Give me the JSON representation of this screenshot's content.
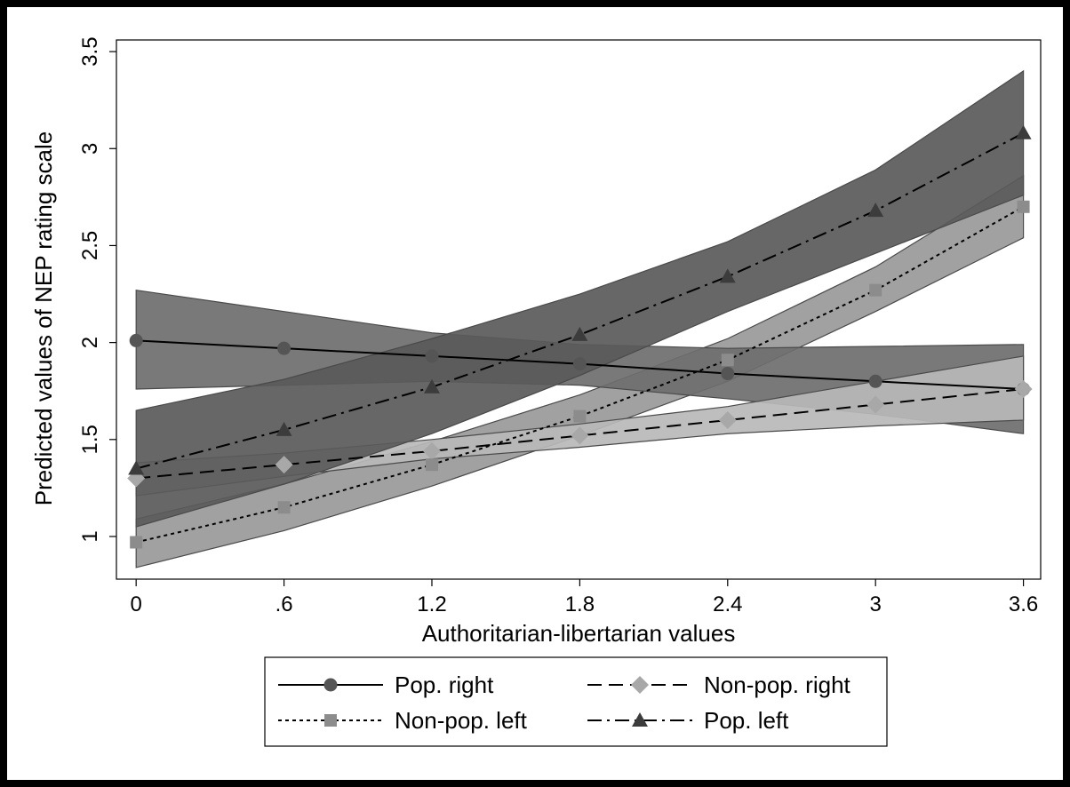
{
  "chart_data": {
    "type": "line",
    "title": "",
    "xlabel": "Authoritarian-libertarian values",
    "ylabel": "Predicted values of NEP rating scale",
    "x": [
      0,
      0.6,
      1.2,
      1.8,
      2.4,
      3,
      3.6
    ],
    "x_tick_labels": [
      "0",
      ".6",
      "1.2",
      "1.8",
      "2.4",
      "3",
      "3.6"
    ],
    "y_ticks": [
      1,
      1.5,
      2,
      2.5,
      3,
      3.5
    ],
    "y_tick_labels": [
      "1",
      "1.5",
      "2",
      "2.5",
      "3",
      "3.5"
    ],
    "xlim": [
      -0.08,
      3.67
    ],
    "ylim": [
      0.78,
      3.56
    ],
    "grid": false,
    "legend_position": "bottom",
    "series": [
      {
        "name": "Pop. right",
        "marker": "circle",
        "line_style": "solid",
        "line_color": "#000000",
        "marker_color": "#555555",
        "band_color": "#6e6e6e",
        "values": [
          2.01,
          1.97,
          1.93,
          1.89,
          1.84,
          1.8,
          1.76
        ],
        "ci_low": [
          1.76,
          1.78,
          1.8,
          1.78,
          1.71,
          1.63,
          1.53
        ],
        "ci_high": [
          2.27,
          2.16,
          2.05,
          1.99,
          1.97,
          1.98,
          1.99
        ]
      },
      {
        "name": "Non-pop. right",
        "marker": "diamond",
        "line_style": "dash",
        "line_color": "#000000",
        "marker_color": "#a8a8a8",
        "band_color": "#b8b8b8",
        "values": [
          1.3,
          1.37,
          1.44,
          1.52,
          1.6,
          1.68,
          1.76
        ],
        "ci_low": [
          1.21,
          1.31,
          1.4,
          1.46,
          1.53,
          1.57,
          1.6
        ],
        "ci_high": [
          1.38,
          1.43,
          1.5,
          1.58,
          1.67,
          1.8,
          1.93
        ]
      },
      {
        "name": "Non-pop. left",
        "marker": "square",
        "line_style": "dot",
        "line_color": "#000000",
        "marker_color": "#8c8c8c",
        "band_color": "#999999",
        "values": [
          0.97,
          1.15,
          1.37,
          1.62,
          1.91,
          2.27,
          2.7
        ],
        "ci_low": [
          0.84,
          1.03,
          1.26,
          1.52,
          1.8,
          2.16,
          2.54
        ],
        "ci_high": [
          1.09,
          1.27,
          1.49,
          1.73,
          2.02,
          2.39,
          2.86
        ]
      },
      {
        "name": "Pop. left",
        "marker": "triangle",
        "line_style": "dashdot",
        "line_color": "#000000",
        "marker_color": "#3c3c3c",
        "band_color": "#5a5a5a",
        "values": [
          1.35,
          1.55,
          1.77,
          2.04,
          2.34,
          2.68,
          3.08
        ],
        "ci_low": [
          1.05,
          1.27,
          1.53,
          1.83,
          2.16,
          2.46,
          2.76
        ],
        "ci_high": [
          1.65,
          1.81,
          2.02,
          2.25,
          2.52,
          2.89,
          3.4
        ]
      }
    ],
    "legend_order": [
      "Pop. right",
      "Non-pop. right",
      "Non-pop. left",
      "Pop. left"
    ]
  }
}
